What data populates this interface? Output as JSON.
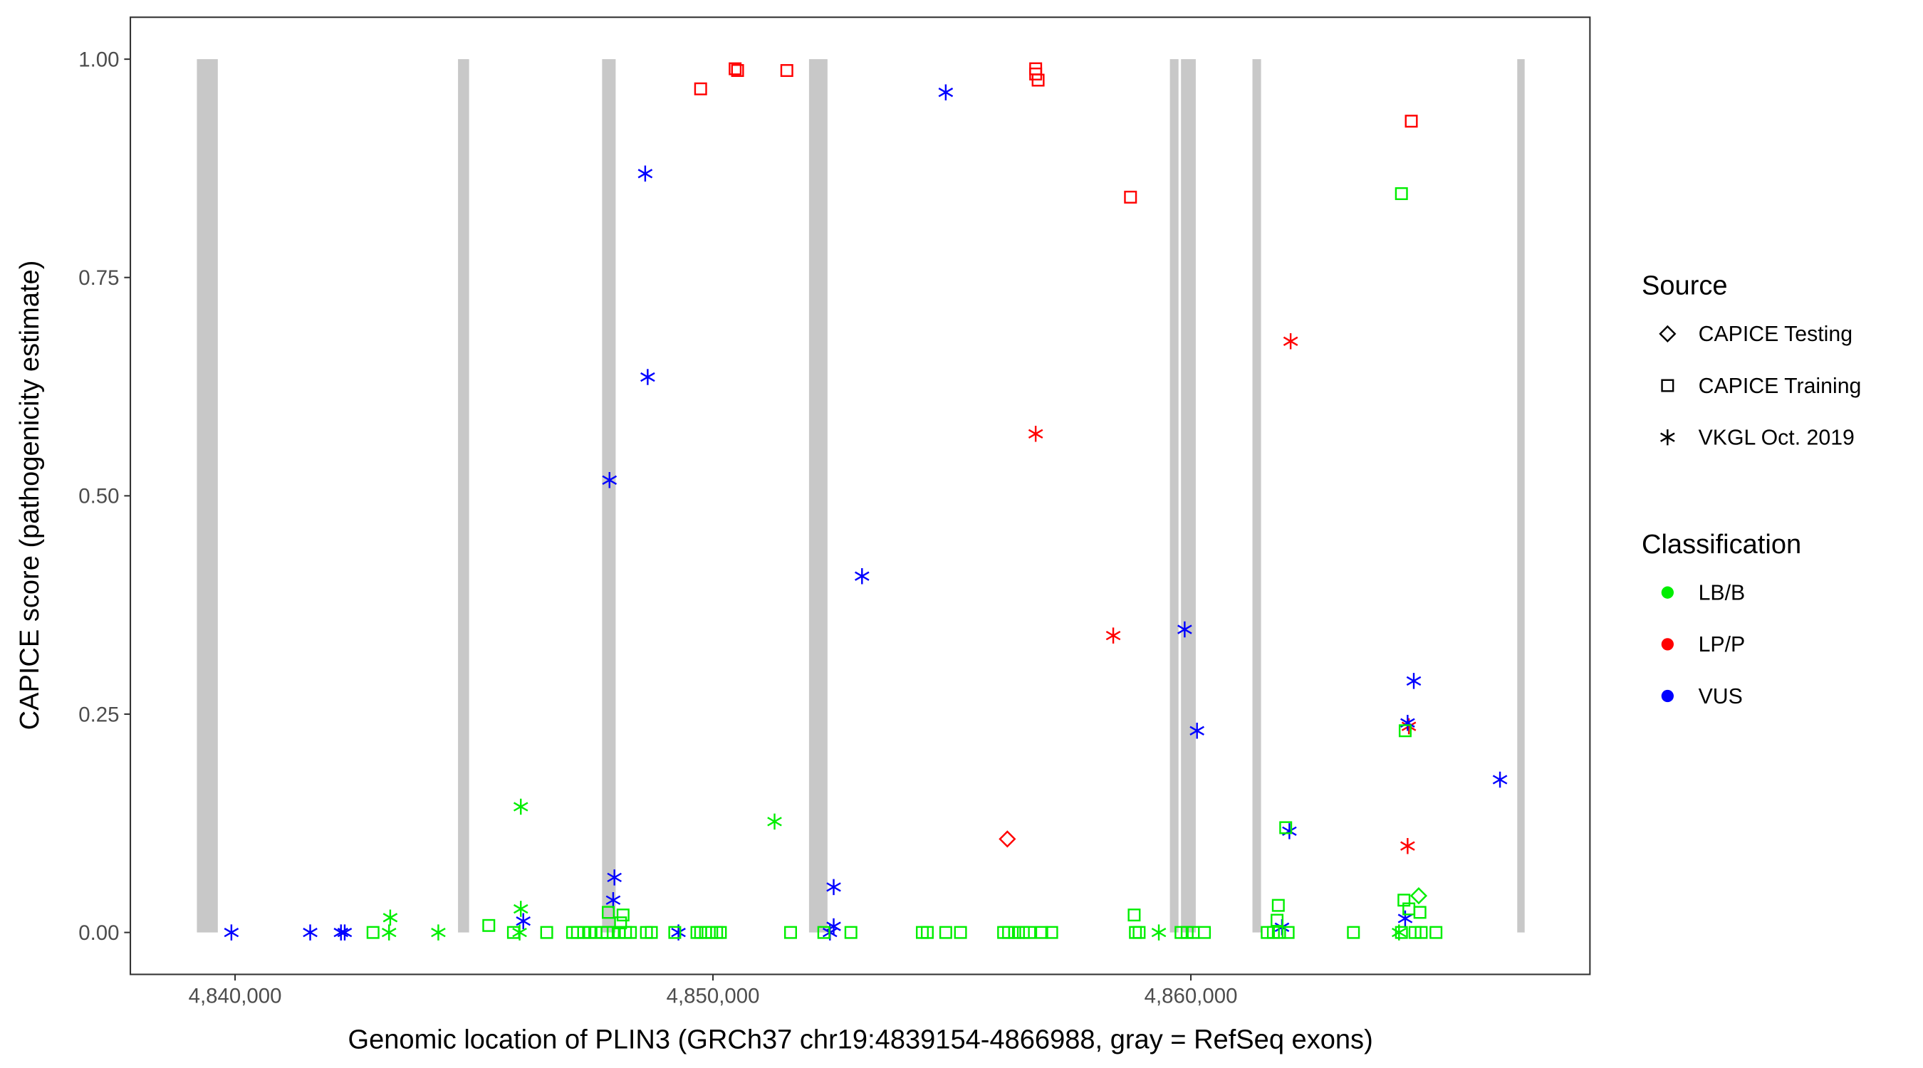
{
  "chart_data": {
    "type": "scatter",
    "xlabel": "Genomic location of PLIN3 (GRCh37 chr19:4839154-4866988, gray = RefSeq exons)",
    "ylabel": "CAPICE score (pathogenicity estimate)",
    "xlim": [
      4837809,
      4868351
    ],
    "ylim": [
      -0.048,
      1.048
    ],
    "x_ticks": [
      {
        "value": 4840000,
        "label": "4,840,000"
      },
      {
        "value": 4850000,
        "label": "4,850,000"
      },
      {
        "value": 4860000,
        "label": "4,860,000"
      }
    ],
    "y_ticks": [
      {
        "value": 0,
        "label": "0.00"
      },
      {
        "value": 0.25,
        "label": "0.25"
      },
      {
        "value": 0.5,
        "label": "0.50"
      },
      {
        "value": 0.75,
        "label": "0.75"
      },
      {
        "value": 1.0,
        "label": "1.00"
      }
    ],
    "grid": false,
    "exons": [
      [
        4839201,
        4839639
      ],
      [
        4844665,
        4844897
      ],
      [
        4847680,
        4847964
      ],
      [
        4852010,
        4852397
      ],
      [
        4859562,
        4859742
      ],
      [
        4859794,
        4860103
      ],
      [
        4861289,
        4861469
      ],
      [
        4866830,
        4866985
      ]
    ],
    "exon_color": "#c8c8c8",
    "legend": {
      "placement": "right",
      "source_title": "Source",
      "sources": [
        {
          "key": "test",
          "label": "CAPICE Testing",
          "shape": "diamond"
        },
        {
          "key": "train",
          "label": "CAPICE Training",
          "shape": "square"
        },
        {
          "key": "vkgl",
          "label": "VKGL Oct. 2019",
          "shape": "asterisk"
        }
      ],
      "class_title": "Classification",
      "classes": [
        {
          "key": "LB",
          "label": "LB/B",
          "color": "#00ee00"
        },
        {
          "key": "LP",
          "label": "LP/P",
          "color": "#ff0000"
        },
        {
          "key": "VUS",
          "label": "VUS",
          "color": "#0000ff"
        }
      ]
    },
    "columns": [
      "position",
      "score",
      "classification",
      "source"
    ],
    "points": [
      [
        4849742,
        0.966,
        "LP",
        "train"
      ],
      [
        4850464,
        0.989,
        "LP",
        "train"
      ],
      [
        4850515,
        0.987,
        "LP",
        "train"
      ],
      [
        4851546,
        0.987,
        "LP",
        "train"
      ],
      [
        4856753,
        0.989,
        "LP",
        "train"
      ],
      [
        4856753,
        0.983,
        "LP",
        "train"
      ],
      [
        4856804,
        0.976,
        "LP",
        "train"
      ],
      [
        4858737,
        0.842,
        "LP",
        "train"
      ],
      [
        4864613,
        0.929,
        "LP",
        "train"
      ],
      [
        4856753,
        0.571,
        "LP",
        "vkgl"
      ],
      [
        4858376,
        0.34,
        "LP",
        "vkgl"
      ],
      [
        4862088,
        0.677,
        "LP",
        "vkgl"
      ],
      [
        4864562,
        0.236,
        "LP",
        "vkgl"
      ],
      [
        4864536,
        0.099,
        "LP",
        "vkgl"
      ],
      [
        4856160,
        0.107,
        "LP",
        "test"
      ],
      [
        4839923,
        0,
        "VUS",
        "vkgl"
      ],
      [
        4841572,
        0,
        "VUS",
        "vkgl"
      ],
      [
        4842216,
        0,
        "VUS",
        "vkgl"
      ],
      [
        4842294,
        0,
        "VUS",
        "vkgl"
      ],
      [
        4846031,
        0.013,
        "VUS",
        "vkgl"
      ],
      [
        4847835,
        0.518,
        "VUS",
        "vkgl"
      ],
      [
        4848582,
        0.869,
        "VUS",
        "vkgl"
      ],
      [
        4848634,
        0.636,
        "VUS",
        "vkgl"
      ],
      [
        4847938,
        0.063,
        "VUS",
        "vkgl"
      ],
      [
        4847912,
        0.037,
        "VUS",
        "vkgl"
      ],
      [
        4849278,
        0,
        "VUS",
        "vkgl"
      ],
      [
        4852526,
        0.052,
        "VUS",
        "vkgl"
      ],
      [
        4852526,
        0.007,
        "VUS",
        "vkgl"
      ],
      [
        4852448,
        0,
        "VUS",
        "vkgl"
      ],
      [
        4853119,
        0.408,
        "VUS",
        "vkgl"
      ],
      [
        4854871,
        0.962,
        "VUS",
        "vkgl"
      ],
      [
        4859871,
        0.347,
        "VUS",
        "vkgl"
      ],
      [
        4860129,
        0.231,
        "VUS",
        "vkgl"
      ],
      [
        4862062,
        0.116,
        "VUS",
        "vkgl"
      ],
      [
        4861907,
        0.006,
        "VUS",
        "vkgl"
      ],
      [
        4864665,
        0.288,
        "VUS",
        "vkgl"
      ],
      [
        4864536,
        0.24,
        "VUS",
        "vkgl"
      ],
      [
        4864485,
        0.016,
        "VUS",
        "vkgl"
      ],
      [
        4866469,
        0.175,
        "VUS",
        "vkgl"
      ],
      [
        4843247,
        0.017,
        "LB",
        "vkgl"
      ],
      [
        4843222,
        0,
        "LB",
        "vkgl"
      ],
      [
        4844253,
        0,
        "LB",
        "vkgl"
      ],
      [
        4845979,
        0.144,
        "LB",
        "vkgl"
      ],
      [
        4845979,
        0.027,
        "LB",
        "vkgl"
      ],
      [
        4845954,
        0,
        "LB",
        "vkgl"
      ],
      [
        4851289,
        0.127,
        "LB",
        "vkgl"
      ],
      [
        4859330,
        0,
        "LB",
        "vkgl"
      ],
      [
        4864356,
        0,
        "LB",
        "vkgl"
      ],
      [
        4864407,
        0.846,
        "LB",
        "train"
      ],
      [
        4864485,
        0.231,
        "LB",
        "train"
      ],
      [
        4861985,
        0.12,
        "LB",
        "train"
      ],
      [
        4858814,
        0.02,
        "LB",
        "train"
      ],
      [
        4861830,
        0.031,
        "LB",
        "train"
      ],
      [
        4861804,
        0.014,
        "LB",
        "train"
      ],
      [
        4864459,
        0.037,
        "LB",
        "train"
      ],
      [
        4864562,
        0.027,
        "LB",
        "train"
      ],
      [
        4864794,
        0.023,
        "LB",
        "train"
      ],
      [
        4845309,
        0.008,
        "LB",
        "train"
      ],
      [
        4847809,
        0.023,
        "LB",
        "train"
      ],
      [
        4848119,
        0.02,
        "LB",
        "train"
      ],
      [
        4848067,
        0.011,
        "LB",
        "train"
      ],
      [
        4842887,
        0,
        "LB",
        "train"
      ],
      [
        4845825,
        0,
        "LB",
        "train"
      ],
      [
        4846521,
        0,
        "LB",
        "train"
      ],
      [
        4847062,
        0,
        "LB",
        "train"
      ],
      [
        4847165,
        0,
        "LB",
        "train"
      ],
      [
        4847294,
        0,
        "LB",
        "train"
      ],
      [
        4847423,
        0,
        "LB",
        "train"
      ],
      [
        4847552,
        0,
        "LB",
        "train"
      ],
      [
        4847680,
        0,
        "LB",
        "train"
      ],
      [
        4847784,
        0,
        "LB",
        "train"
      ],
      [
        4847912,
        0,
        "LB",
        "train"
      ],
      [
        4848041,
        0,
        "LB",
        "train"
      ],
      [
        4848170,
        0,
        "LB",
        "train"
      ],
      [
        4848273,
        0,
        "LB",
        "train"
      ],
      [
        4848608,
        0,
        "LB",
        "train"
      ],
      [
        4848711,
        0,
        "LB",
        "train"
      ],
      [
        4849201,
        0,
        "LB",
        "train"
      ],
      [
        4849665,
        0,
        "LB",
        "train"
      ],
      [
        4849742,
        0,
        "LB",
        "train"
      ],
      [
        4849845,
        0,
        "LB",
        "train"
      ],
      [
        4849974,
        0,
        "LB",
        "train"
      ],
      [
        4850077,
        0,
        "LB",
        "train"
      ],
      [
        4850155,
        0,
        "LB",
        "train"
      ],
      [
        4851624,
        0,
        "LB",
        "train"
      ],
      [
        4852320,
        0,
        "LB",
        "train"
      ],
      [
        4852887,
        0,
        "LB",
        "train"
      ],
      [
        4854381,
        0,
        "LB",
        "train"
      ],
      [
        4854485,
        0,
        "LB",
        "train"
      ],
      [
        4854871,
        0,
        "LB",
        "train"
      ],
      [
        4855180,
        0,
        "LB",
        "train"
      ],
      [
        4856082,
        0,
        "LB",
        "train"
      ],
      [
        4856186,
        0,
        "LB",
        "train"
      ],
      [
        4856314,
        0,
        "LB",
        "train"
      ],
      [
        4856392,
        0,
        "LB",
        "train"
      ],
      [
        4856495,
        0,
        "LB",
        "train"
      ],
      [
        4856624,
        0,
        "LB",
        "train"
      ],
      [
        4856881,
        0,
        "LB",
        "train"
      ],
      [
        4857088,
        0,
        "LB",
        "train"
      ],
      [
        4858840,
        0,
        "LB",
        "train"
      ],
      [
        4858918,
        0,
        "LB",
        "train"
      ],
      [
        4859794,
        0,
        "LB",
        "train"
      ],
      [
        4859923,
        0,
        "LB",
        "train"
      ],
      [
        4860052,
        0,
        "LB",
        "train"
      ],
      [
        4860284,
        0,
        "LB",
        "train"
      ],
      [
        4861598,
        0,
        "LB",
        "train"
      ],
      [
        4861727,
        0,
        "LB",
        "train"
      ],
      [
        4861856,
        0,
        "LB",
        "train"
      ],
      [
        4862036,
        0,
        "LB",
        "train"
      ],
      [
        4863402,
        0,
        "LB",
        "train"
      ],
      [
        4864407,
        0,
        "LB",
        "train"
      ],
      [
        4864691,
        0,
        "LB",
        "train"
      ],
      [
        4864820,
        0,
        "LB",
        "train"
      ],
      [
        4865129,
        0,
        "LB",
        "train"
      ],
      [
        4864768,
        0.042,
        "LB",
        "test"
      ]
    ]
  }
}
